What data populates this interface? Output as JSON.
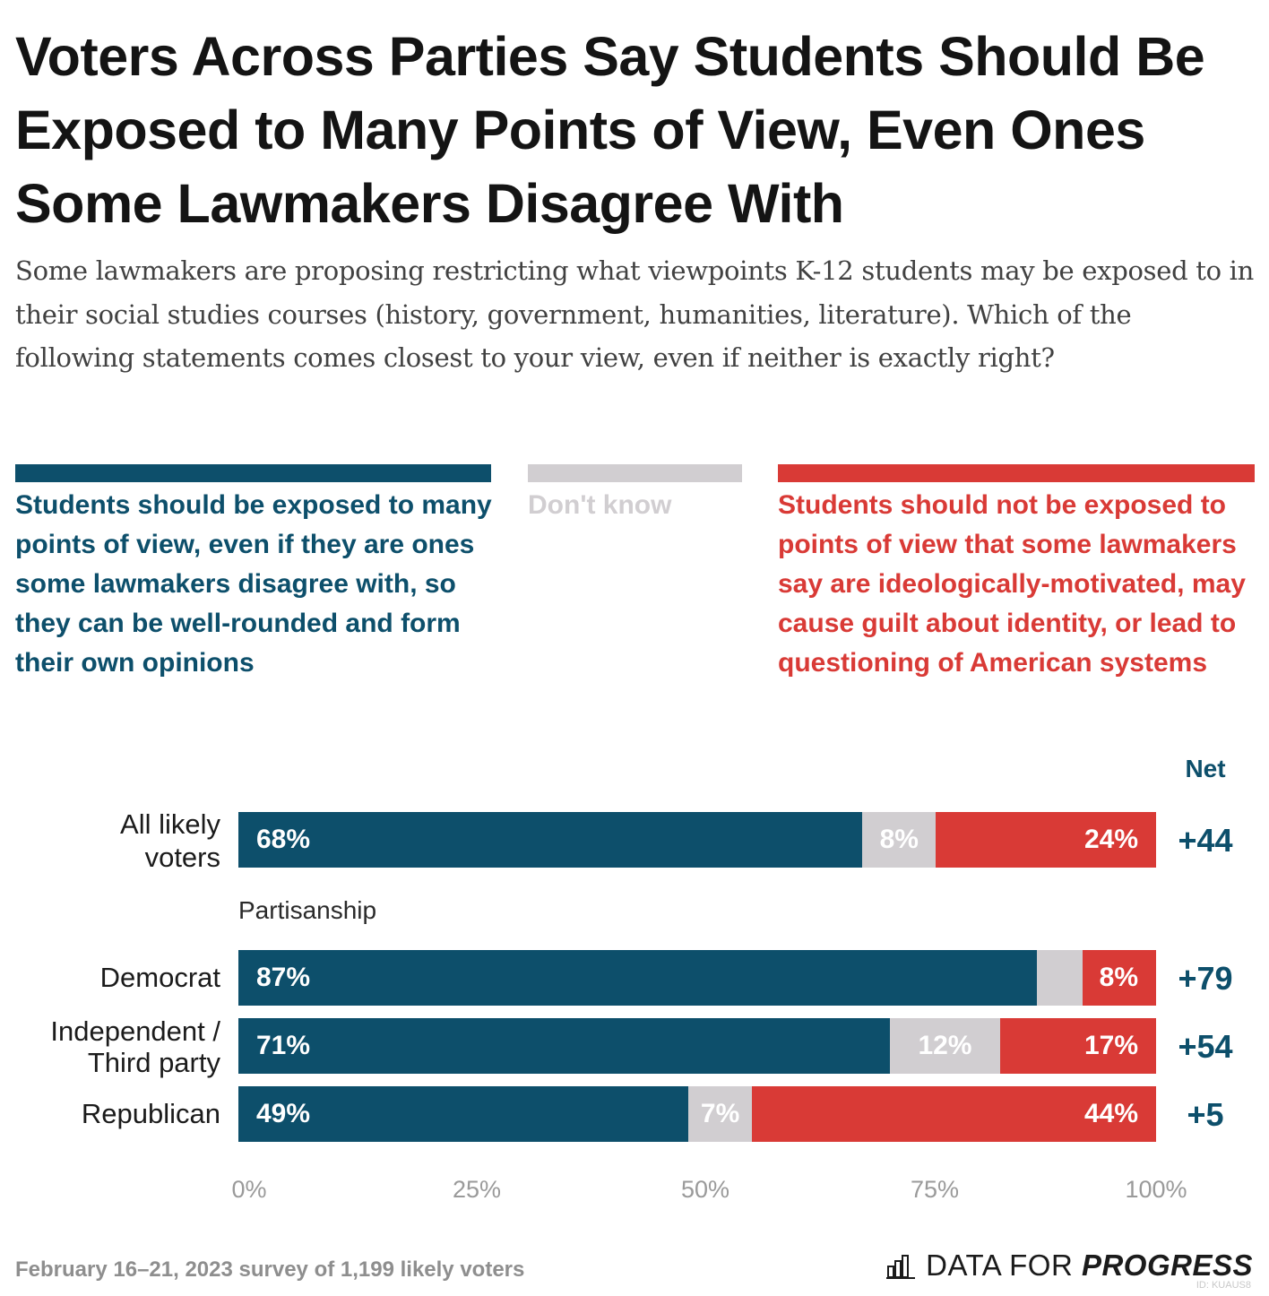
{
  "chart_data": {
    "type": "bar",
    "orientation": "horizontal-stacked",
    "title": "Voters Across Parties Say Students Should Be Exposed to Many Points of View, Even Ones Some Lawmakers Disagree With",
    "subtitle": "Some lawmakers are proposing restricting what viewpoints K-12 students may be exposed to in their social studies courses (history, government, humanities, literature). Which of the following statements comes closest to your view, even if neither is exactly right?",
    "legend": [
      {
        "key": "exposed",
        "label": "Students should be exposed to many points of view, even if they are ones some lawmakers disagree with, so they can be well-rounded and form their own opinions",
        "color": "#0d4f6b"
      },
      {
        "key": "dont_know",
        "label": "Don't know",
        "color": "#d1ced1"
      },
      {
        "key": "not_exposed",
        "label": "Students should not be exposed to points of view that some lawmakers say are ideologically-motivated, may cause guilt about identity, or lead to questioning of American systems",
        "color": "#d93a36"
      }
    ],
    "net_header": "Net",
    "group_label": "Partisanship",
    "categories": [
      "All likely voters",
      "Democrat",
      "Independent / Third party",
      "Republican"
    ],
    "series": [
      {
        "name": "exposed",
        "values": [
          68,
          87,
          71,
          49
        ],
        "labels": [
          "68%",
          "87%",
          "71%",
          "49%"
        ]
      },
      {
        "name": "dont_know",
        "values": [
          8,
          5,
          12,
          7
        ],
        "labels": [
          "8%",
          "",
          "12%",
          "7%"
        ]
      },
      {
        "name": "not_exposed",
        "values": [
          24,
          8,
          17,
          44
        ],
        "labels": [
          "24%",
          "8%",
          "17%",
          "44%"
        ]
      }
    ],
    "net": [
      "+44",
      "+79",
      "+54",
      "+5"
    ],
    "xlim": [
      0,
      100
    ],
    "xticks": [
      "0%",
      "25%",
      "50%",
      "75%",
      "100%"
    ]
  },
  "footnote": "February 16–21, 2023 survey of 1,199 likely voters",
  "logo": {
    "prefix": "DATA FOR ",
    "strong": "PROGRESS"
  },
  "image_id": "ID: KUAUS8"
}
